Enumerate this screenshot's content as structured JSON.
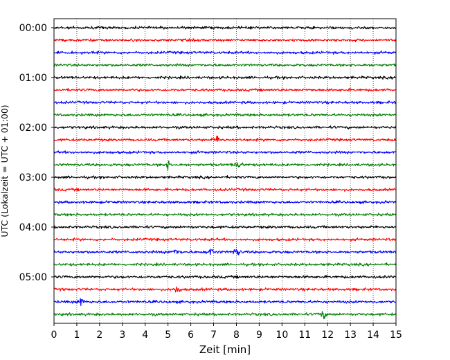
{
  "chart_data": {
    "type": "line",
    "title": "",
    "xlabel": "Zeit  [min]",
    "ylabel": "UTC (Lokalzeit = UTC + 01:00)",
    "xlim": [
      0,
      15
    ],
    "x_ticks": [
      "0",
      "1",
      "2",
      "3",
      "4",
      "5",
      "6",
      "7",
      "8",
      "9",
      "10",
      "11",
      "12",
      "13",
      "14",
      "15"
    ],
    "y_tick_labels": [
      "00:00",
      "01:00",
      "02:00",
      "03:00",
      "04:00",
      "05:00"
    ],
    "grid": "vertical dotted at each minute",
    "legend": "none",
    "trace_interval_min": 15,
    "trace_colors": [
      "#000000",
      "#ff0000",
      "#0000ff",
      "#008000"
    ],
    "traces": [
      {
        "start": "00:00",
        "color": "#000000"
      },
      {
        "start": "00:15",
        "color": "#ff0000"
      },
      {
        "start": "00:30",
        "color": "#0000ff"
      },
      {
        "start": "00:45",
        "color": "#008000"
      },
      {
        "start": "01:00",
        "color": "#000000"
      },
      {
        "start": "01:15",
        "color": "#ff0000"
      },
      {
        "start": "01:30",
        "color": "#0000ff"
      },
      {
        "start": "01:45",
        "color": "#008000"
      },
      {
        "start": "02:00",
        "color": "#000000"
      },
      {
        "start": "02:15",
        "color": "#ff0000",
        "events_min": [
          7.2
        ]
      },
      {
        "start": "02:30",
        "color": "#0000ff"
      },
      {
        "start": "02:45",
        "color": "#008000",
        "events_min": [
          5.0,
          8.1
        ]
      },
      {
        "start": "03:00",
        "color": "#000000"
      },
      {
        "start": "03:15",
        "color": "#ff0000"
      },
      {
        "start": "03:30",
        "color": "#0000ff"
      },
      {
        "start": "03:45",
        "color": "#008000"
      },
      {
        "start": "04:00",
        "color": "#000000"
      },
      {
        "start": "04:15",
        "color": "#ff0000"
      },
      {
        "start": "04:30",
        "color": "#0000ff",
        "events_min": [
          5.3,
          6.9,
          8.0
        ]
      },
      {
        "start": "04:45",
        "color": "#008000"
      },
      {
        "start": "05:00",
        "color": "#000000"
      },
      {
        "start": "05:15",
        "color": "#ff0000",
        "events_min": [
          5.4
        ]
      },
      {
        "start": "05:30",
        "color": "#0000ff",
        "events_min": [
          1.2
        ]
      },
      {
        "start": "05:45",
        "color": "#008000",
        "events_min": [
          11.8
        ]
      }
    ]
  }
}
